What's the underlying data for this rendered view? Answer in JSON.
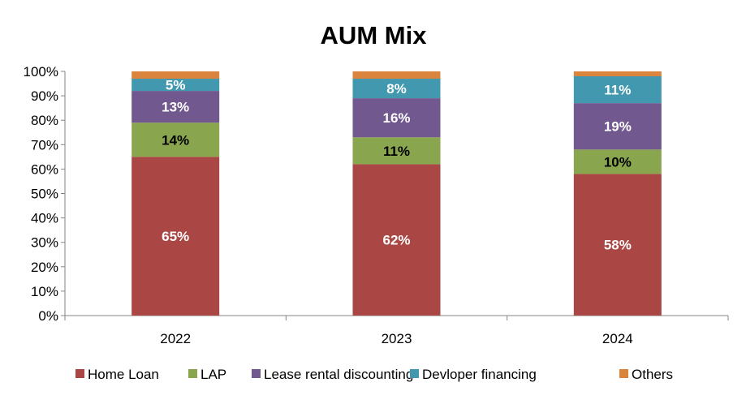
{
  "chart_data": {
    "type": "bar",
    "stacked": true,
    "title": "AUM Mix",
    "xlabel": "",
    "ylabel": "",
    "ylim": [
      0,
      100
    ],
    "yticks": [
      "0%",
      "10%",
      "20%",
      "30%",
      "40%",
      "50%",
      "60%",
      "70%",
      "80%",
      "90%",
      "100%"
    ],
    "categories": [
      "2022",
      "2023",
      "2024"
    ],
    "legend_position": "bottom",
    "series": [
      {
        "name": "Home Loan",
        "color": "#AA4643",
        "label_color": "#FFFFFF",
        "values": [
          65,
          62,
          58
        ],
        "labels": [
          "65%",
          "62%",
          "58%"
        ]
      },
      {
        "name": "LAP",
        "color": "#89A54E",
        "label_color": "#000000",
        "values": [
          14,
          11,
          10
        ],
        "labels": [
          "14%",
          "11%",
          "10%"
        ]
      },
      {
        "name": "Lease rental discounting",
        "color": "#71588F",
        "label_color": "#FFFFFF",
        "values": [
          13,
          16,
          19
        ],
        "labels": [
          "13%",
          "16%",
          "19%"
        ]
      },
      {
        "name": "Devloper financing",
        "color": "#4198AF",
        "label_color": "#FFFFFF",
        "values": [
          5,
          8,
          11
        ],
        "labels": [
          "5%",
          "8%",
          "11%"
        ]
      },
      {
        "name": "Others",
        "color": "#DB843D",
        "label_color": "#FFFFFF",
        "values": [
          3,
          3,
          2
        ],
        "labels": [
          null,
          null,
          null
        ]
      }
    ]
  }
}
